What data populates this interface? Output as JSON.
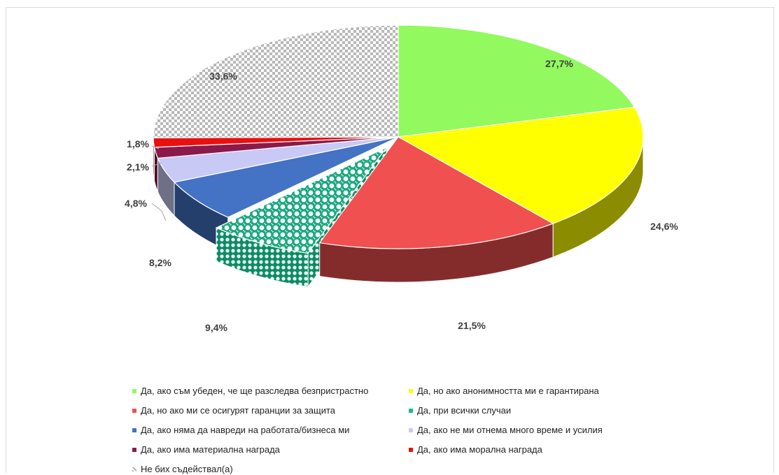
{
  "chart_data": {
    "type": "pie",
    "title": "",
    "slices": [
      {
        "label": "Да, ако съм убеден, че ще разследва безпристрастно",
        "value": 27.7,
        "value_label": "27,7%",
        "color": "#92f95e",
        "pattern": "solid"
      },
      {
        "label": "Да, но ако анонимността ми е гарантирана",
        "value": 24.6,
        "value_label": "24,6%",
        "color": "#ffff00",
        "pattern": "solid"
      },
      {
        "label": "Да, но ако ми се осигурят гаранции за защита",
        "value": 21.5,
        "value_label": "21,5%",
        "color": "#f05050",
        "pattern": "solid"
      },
      {
        "label": "Да, при всички случаи",
        "value": 9.4,
        "value_label": "9,4%",
        "color": "#1abc8c",
        "pattern": "checker",
        "exploded": true
      },
      {
        "label": "Да, ако няма да навреди на работата/бизнеса ми",
        "value": 8.2,
        "value_label": "8,2%",
        "color": "#4472c4",
        "pattern": "solid"
      },
      {
        "label": "Да, ако не ми отнема много време и усилия",
        "value": 4.8,
        "value_label": "4,8%",
        "color": "#c9c9f5",
        "pattern": "solid"
      },
      {
        "label": "Да, ако има материална награда",
        "value": 2.1,
        "value_label": "2,1%",
        "color": "#8b1a4a",
        "pattern": "solid"
      },
      {
        "label": "Да, ако има морална награда",
        "value": 1.8,
        "value_label": "1,8%",
        "color": "#e81010",
        "pattern": "solid"
      },
      {
        "label": "Не бих съдействал(а)",
        "value": 33.6,
        "value_label": "33,6%",
        "color": "#bfbfbf",
        "pattern": "dots"
      }
    ],
    "legend_position": "bottom"
  }
}
